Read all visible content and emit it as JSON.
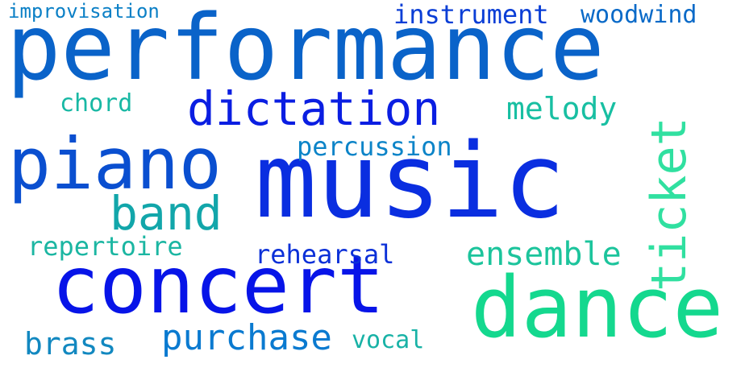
{
  "words": {
    "performance": {
      "text": "performance",
      "color": "#0a63c9"
    },
    "music": {
      "text": "music",
      "color": "#0a2ee0"
    },
    "concert": {
      "text": "concert",
      "color": "#0714e8"
    },
    "dance": {
      "text": "dance",
      "color": "#14d88e"
    },
    "piano": {
      "text": "piano",
      "color": "#0a4fd0"
    },
    "dictation": {
      "text": "dictation",
      "color": "#0a1ee2"
    },
    "ticket": {
      "text": "ticket",
      "color": "#30e0a0"
    },
    "band": {
      "text": "band",
      "color": "#12a6aa"
    },
    "purchase": {
      "text": "purchase",
      "color": "#0a7ad0"
    },
    "instrument": {
      "text": "instrument",
      "color": "#0a3ed6"
    },
    "melody": {
      "text": "melody",
      "color": "#18bfa2"
    },
    "ensemble": {
      "text": "ensemble",
      "color": "#1cc49c"
    },
    "percussion": {
      "text": "percussion",
      "color": "#0c84c8"
    },
    "repertoire": {
      "text": "repertoire",
      "color": "#1bb6a2"
    },
    "rehearsal": {
      "text": "rehearsal",
      "color": "#0b30d8"
    },
    "brass": {
      "text": "brass",
      "color": "#1288c0"
    },
    "improvisation": {
      "text": "improvisation",
      "color": "#0c80c6"
    },
    "woodwind": {
      "text": "woodwind",
      "color": "#0a6ac8"
    },
    "chord": {
      "text": "chord",
      "color": "#18b8a4"
    },
    "vocal": {
      "text": "vocal",
      "color": "#18b2a6"
    }
  }
}
